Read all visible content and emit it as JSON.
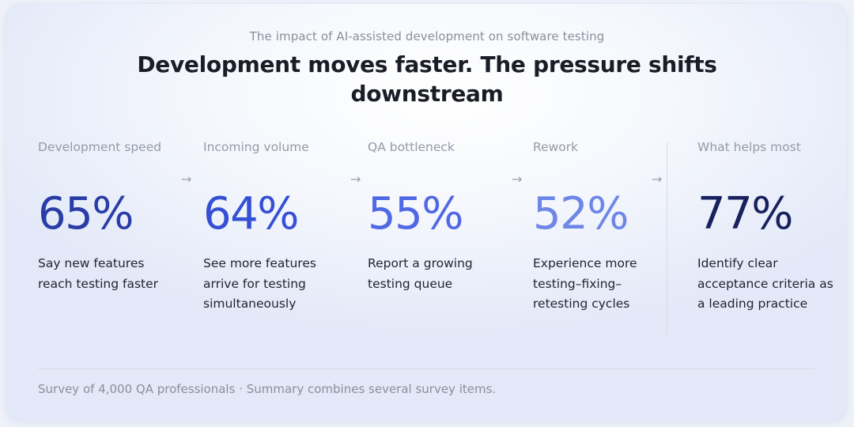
{
  "header": {
    "subtitle": "The impact of AI-assisted development on software testing",
    "title": "Development moves faster. The pressure shifts downstream"
  },
  "stages": [
    {
      "label": "Development speed",
      "value": "65%",
      "description": "Say new features reach testing faster",
      "color": "#2a3da6"
    },
    {
      "label": "Incoming volume",
      "value": "64%",
      "description": "See more features arrive for testing simultaneously",
      "color": "#3550d4"
    },
    {
      "label": "QA bottleneck",
      "value": "55%",
      "description": "Report a growing testing queue",
      "color": "#5068e4"
    },
    {
      "label": "Rework",
      "value": "52%",
      "description": "Experience more testing–fixing–retesting cycles",
      "color": "#6e86e6"
    },
    {
      "label": "What helps most",
      "value": "77%",
      "description": "Identify clear acceptance criteria as a leading practice",
      "color": "#17215e"
    }
  ],
  "arrows": [
    "→",
    "→",
    "→",
    "→"
  ],
  "footnote": "Survey of 4,000 QA professionals · Summary combines several survey items."
}
